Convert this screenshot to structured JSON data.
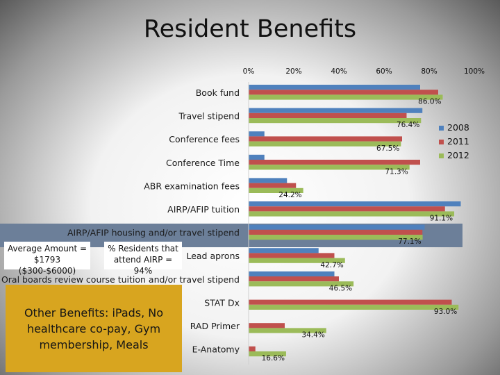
{
  "title": "Resident Benefits",
  "annotations": {
    "average_amount_line1": "Average Amount =",
    "average_amount_line2": "$1793 ($300-$6000)",
    "attend_line1": "% Residents that",
    "attend_line2": "attend AIRP = 94%",
    "other_benefits": "Other Benefits: iPads, No healthcare co-pay, Gym membership, Meals"
  },
  "chart_data": {
    "type": "bar",
    "orientation": "horizontal",
    "title": "Resident Benefits",
    "xlim": [
      0,
      100
    ],
    "x_ticks": [
      "0%",
      "20%",
      "40%",
      "60%",
      "80%",
      "100%"
    ],
    "legend_position": "right",
    "categories": [
      "Book fund",
      "Travel stipend",
      "Conference  fees",
      "Conference Time",
      "ABR examination fees",
      "AIRP/AFIP tuition",
      "AIRP/AFIP housing and/or travel stipend",
      "Lead aprons",
      "Oral boards review course tuition and/or travel stipend",
      "STAT Dx",
      "RAD Primer",
      "E-Anatomy"
    ],
    "series": [
      {
        "name": "2008",
        "color": "#4f81bd",
        "values": [
          76,
          77,
          7,
          7,
          17,
          94,
          78,
          31,
          38,
          null,
          null,
          null
        ]
      },
      {
        "name": "2011",
        "color": "#c0504d",
        "values": [
          84,
          70,
          68,
          76,
          21,
          87,
          77,
          38,
          40,
          90,
          16,
          3
        ]
      },
      {
        "name": "2012",
        "color": "#9bbb59",
        "values": [
          86.0,
          76.4,
          67.5,
          71.3,
          24.2,
          91.1,
          77.1,
          42.7,
          46.5,
          93.0,
          34.4,
          16.6
        ]
      }
    ],
    "data_labels": [
      "86.0%",
      "76.4%",
      "67.5%",
      "71.3%",
      "24.2%",
      "91.1%",
      "77.1%",
      "42.7%",
      "46.5%",
      "93.0%",
      "34.4%",
      "16.6%"
    ]
  }
}
